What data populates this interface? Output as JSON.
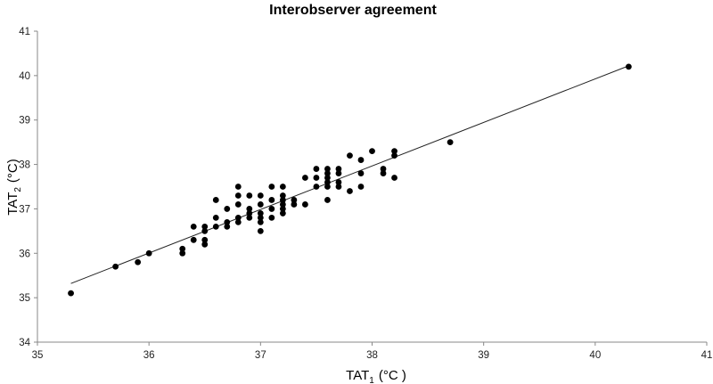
{
  "chart_data": {
    "type": "scatter",
    "title": "Interobserver agreement",
    "xlabel": {
      "main": "TAT",
      "sub": "1",
      "unit": "(°C )"
    },
    "ylabel": {
      "main": "TAT",
      "sub": "2",
      "unit": "(°C)"
    },
    "xlim": [
      35,
      41
    ],
    "ylim": [
      34,
      41
    ],
    "xticks": [
      35,
      36,
      37,
      38,
      39,
      40,
      41
    ],
    "yticks": [
      34,
      35,
      36,
      37,
      38,
      39,
      40,
      41
    ],
    "grid": false,
    "trendline": {
      "x": [
        35.3,
        40.3
      ],
      "y": [
        35.32,
        40.22
      ]
    },
    "points": [
      [
        35.3,
        35.1
      ],
      [
        35.7,
        35.7
      ],
      [
        35.9,
        35.8
      ],
      [
        36.0,
        36.0
      ],
      [
        36.3,
        36.0
      ],
      [
        36.3,
        36.1
      ],
      [
        36.4,
        36.3
      ],
      [
        36.4,
        36.6
      ],
      [
        36.5,
        36.2
      ],
      [
        36.5,
        36.3
      ],
      [
        36.5,
        36.5
      ],
      [
        36.5,
        36.6
      ],
      [
        36.6,
        36.6
      ],
      [
        36.6,
        36.8
      ],
      [
        36.6,
        37.2
      ],
      [
        36.7,
        36.6
      ],
      [
        36.7,
        36.7
      ],
      [
        36.7,
        37.0
      ],
      [
        36.8,
        36.7
      ],
      [
        36.8,
        36.8
      ],
      [
        36.8,
        37.1
      ],
      [
        36.8,
        37.3
      ],
      [
        36.8,
        37.5
      ],
      [
        36.9,
        36.8
      ],
      [
        36.9,
        36.9
      ],
      [
        36.9,
        37.0
      ],
      [
        36.9,
        37.3
      ],
      [
        37.0,
        36.5
      ],
      [
        37.0,
        36.7
      ],
      [
        37.0,
        36.8
      ],
      [
        37.0,
        36.9
      ],
      [
        37.0,
        37.1
      ],
      [
        37.0,
        37.3
      ],
      [
        37.1,
        36.8
      ],
      [
        37.1,
        37.0
      ],
      [
        37.1,
        37.2
      ],
      [
        37.1,
        37.5
      ],
      [
        37.2,
        36.9
      ],
      [
        37.2,
        37.0
      ],
      [
        37.2,
        37.1
      ],
      [
        37.2,
        37.2
      ],
      [
        37.2,
        37.3
      ],
      [
        37.2,
        37.5
      ],
      [
        37.3,
        37.1
      ],
      [
        37.3,
        37.2
      ],
      [
        37.4,
        37.1
      ],
      [
        37.4,
        37.7
      ],
      [
        37.5,
        37.5
      ],
      [
        37.5,
        37.7
      ],
      [
        37.5,
        37.9
      ],
      [
        37.6,
        37.2
      ],
      [
        37.6,
        37.5
      ],
      [
        37.6,
        37.6
      ],
      [
        37.6,
        37.7
      ],
      [
        37.6,
        37.8
      ],
      [
        37.6,
        37.9
      ],
      [
        37.7,
        37.5
      ],
      [
        37.7,
        37.6
      ],
      [
        37.7,
        37.8
      ],
      [
        37.7,
        37.9
      ],
      [
        37.8,
        37.4
      ],
      [
        37.8,
        38.2
      ],
      [
        37.9,
        37.5
      ],
      [
        37.9,
        37.8
      ],
      [
        37.9,
        38.1
      ],
      [
        38.0,
        38.3
      ],
      [
        38.1,
        37.8
      ],
      [
        38.1,
        37.9
      ],
      [
        38.2,
        37.7
      ],
      [
        38.2,
        38.2
      ],
      [
        38.2,
        38.3
      ],
      [
        38.7,
        38.5
      ],
      [
        40.3,
        40.2
      ]
    ]
  }
}
